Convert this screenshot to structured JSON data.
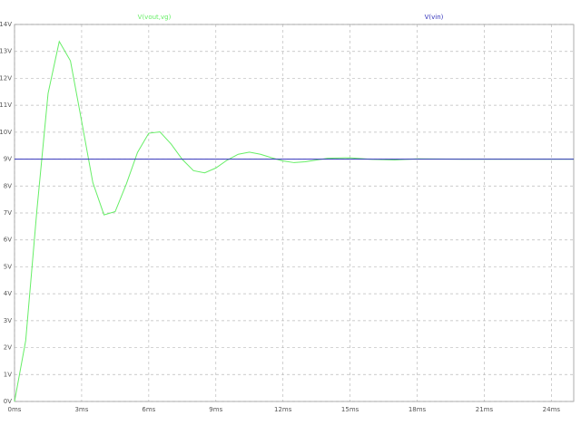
{
  "chart_data": {
    "type": "line",
    "series": [
      {
        "name": "V(vout,vg)",
        "color": "#66ee66",
        "x": [
          0,
          0.5,
          1,
          1.5,
          2,
          2.5,
          3,
          3.5,
          4,
          4.5,
          5,
          5.5,
          6,
          6.5,
          7,
          7.5,
          8,
          8.5,
          9,
          9.5,
          10,
          10.5,
          11,
          11.5,
          12,
          12.5,
          13,
          14,
          15,
          16,
          17,
          18,
          20,
          25
        ],
        "values": [
          0,
          2.26,
          7.1,
          11.44,
          13.37,
          12.65,
          10.41,
          8.13,
          6.93,
          7.05,
          8.08,
          9.25,
          9.96,
          10.01,
          9.56,
          8.99,
          8.57,
          8.49,
          8.67,
          8.96,
          9.18,
          9.26,
          9.18,
          9.05,
          8.93,
          8.87,
          8.9,
          9.03,
          9.05,
          8.99,
          8.97,
          9.01,
          9,
          9
        ]
      },
      {
        "name": "V(vin)",
        "color": "#3333bb",
        "x": [
          0,
          25
        ],
        "values": [
          9,
          9
        ]
      }
    ],
    "xlim": [
      0,
      25
    ],
    "xticks": [
      {
        "value": 0,
        "label": "0ms"
      },
      {
        "value": 3,
        "label": "3ms"
      },
      {
        "value": 6,
        "label": "6ms"
      },
      {
        "value": 9,
        "label": "9ms"
      },
      {
        "value": 12,
        "label": "12ms"
      },
      {
        "value": 15,
        "label": "15ms"
      },
      {
        "value": 18,
        "label": "18ms"
      },
      {
        "value": 21,
        "label": "21ms"
      },
      {
        "value": 24,
        "label": "24ms"
      }
    ],
    "ylim": [
      0,
      14
    ],
    "yticks": [
      {
        "value": 0,
        "label": "0V"
      },
      {
        "value": 1,
        "label": "1V"
      },
      {
        "value": 2,
        "label": "2V"
      },
      {
        "value": 3,
        "label": "3V"
      },
      {
        "value": 4,
        "label": "4V"
      },
      {
        "value": 5,
        "label": "5V"
      },
      {
        "value": 6,
        "label": "6V"
      },
      {
        "value": 7,
        "label": "7V"
      },
      {
        "value": 8,
        "label": "8V"
      },
      {
        "value": 9,
        "label": "9V"
      },
      {
        "value": 10,
        "label": "10V"
      },
      {
        "value": 11,
        "label": "11V"
      },
      {
        "value": 12,
        "label": "12V"
      },
      {
        "value": 13,
        "label": "13V"
      },
      {
        "value": 14,
        "label": "14V"
      }
    ],
    "grid": true
  }
}
